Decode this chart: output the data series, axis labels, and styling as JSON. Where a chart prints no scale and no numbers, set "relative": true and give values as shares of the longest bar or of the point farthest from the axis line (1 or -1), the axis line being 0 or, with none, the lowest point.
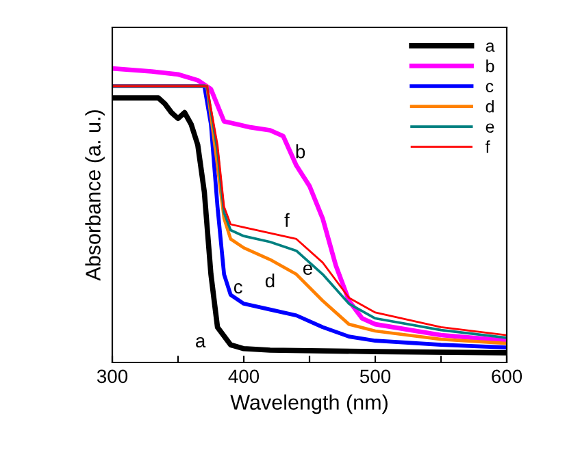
{
  "chart_data": {
    "type": "line",
    "relative": true,
    "xlabel": "Wavelength (nm)",
    "ylabel": "Absorbance (a. u.)",
    "xlim": [
      300,
      600
    ],
    "xticks": [
      300,
      {
        "value": 350,
        "label": null
      },
      400,
      {
        "value": 450,
        "label": null
      },
      500,
      {
        "value": 550,
        "label": null
      },
      600
    ],
    "legend": "top right",
    "grid": false,
    "marker": "none",
    "line_style": "solid",
    "series": [
      {
        "name": "a",
        "color": "#000000",
        "x": [
          300,
          335,
          340,
          345,
          350,
          355,
          360,
          365,
          370,
          375,
          380,
          390,
          400,
          420,
          500,
          600
        ],
        "values": [
          0.9,
          0.9,
          0.88,
          0.85,
          0.83,
          0.85,
          0.81,
          0.74,
          0.58,
          0.3,
          0.12,
          0.06,
          0.047,
          0.042,
          0.037,
          0.033
        ]
      },
      {
        "name": "b",
        "color": "#ff00ff",
        "x": [
          300,
          330,
          350,
          365,
          375,
          385,
          395,
          405,
          420,
          430,
          440,
          450,
          460,
          470,
          480,
          490,
          500,
          550,
          600
        ],
        "values": [
          1.0,
          0.99,
          0.98,
          0.96,
          0.93,
          0.82,
          0.81,
          0.8,
          0.79,
          0.77,
          0.67,
          0.6,
          0.49,
          0.33,
          0.21,
          0.15,
          0.13,
          0.093,
          0.074
        ]
      },
      {
        "name": "c",
        "color": "#0000ff",
        "x": [
          300,
          370,
          375,
          380,
          385,
          390,
          400,
          420,
          440,
          460,
          480,
          500,
          550,
          600
        ],
        "values": [
          0.94,
          0.94,
          0.81,
          0.53,
          0.3,
          0.23,
          0.2,
          0.18,
          0.16,
          0.12,
          0.088,
          0.074,
          0.06,
          0.051
        ]
      },
      {
        "name": "d",
        "color": "#ff8000",
        "x": [
          300,
          372,
          380,
          385,
          390,
          400,
          420,
          440,
          460,
          480,
          500,
          550,
          600
        ],
        "values": [
          0.94,
          0.94,
          0.67,
          0.49,
          0.42,
          0.39,
          0.35,
          0.3,
          0.21,
          0.13,
          0.107,
          0.079,
          0.065
        ]
      },
      {
        "name": "e",
        "color": "#008080",
        "x": [
          300,
          372,
          380,
          385,
          390,
          400,
          420,
          440,
          460,
          480,
          500,
          550,
          600
        ],
        "values": [
          0.94,
          0.94,
          0.72,
          0.51,
          0.45,
          0.43,
          0.41,
          0.38,
          0.3,
          0.2,
          0.15,
          0.11,
          0.084
        ]
      },
      {
        "name": "f",
        "color": "#ff0000",
        "x": [
          300,
          372,
          380,
          385,
          390,
          400,
          420,
          440,
          460,
          480,
          500,
          550,
          600
        ],
        "values": [
          0.94,
          0.94,
          0.74,
          0.53,
          0.47,
          0.46,
          0.44,
          0.42,
          0.34,
          0.22,
          0.17,
          0.12,
          0.093
        ]
      }
    ],
    "annotations": [
      {
        "text": "a",
        "x": 380,
        "y": 0.12
      },
      {
        "text": "b",
        "x": 430,
        "y": 0.77
      },
      {
        "text": "c",
        "x": 400,
        "y": 0.2
      },
      {
        "text": "d",
        "x": 420,
        "y": 0.35
      },
      {
        "text": "e",
        "x": 440,
        "y": 0.38
      },
      {
        "text": "f",
        "x": 440,
        "y": 0.42
      }
    ]
  }
}
